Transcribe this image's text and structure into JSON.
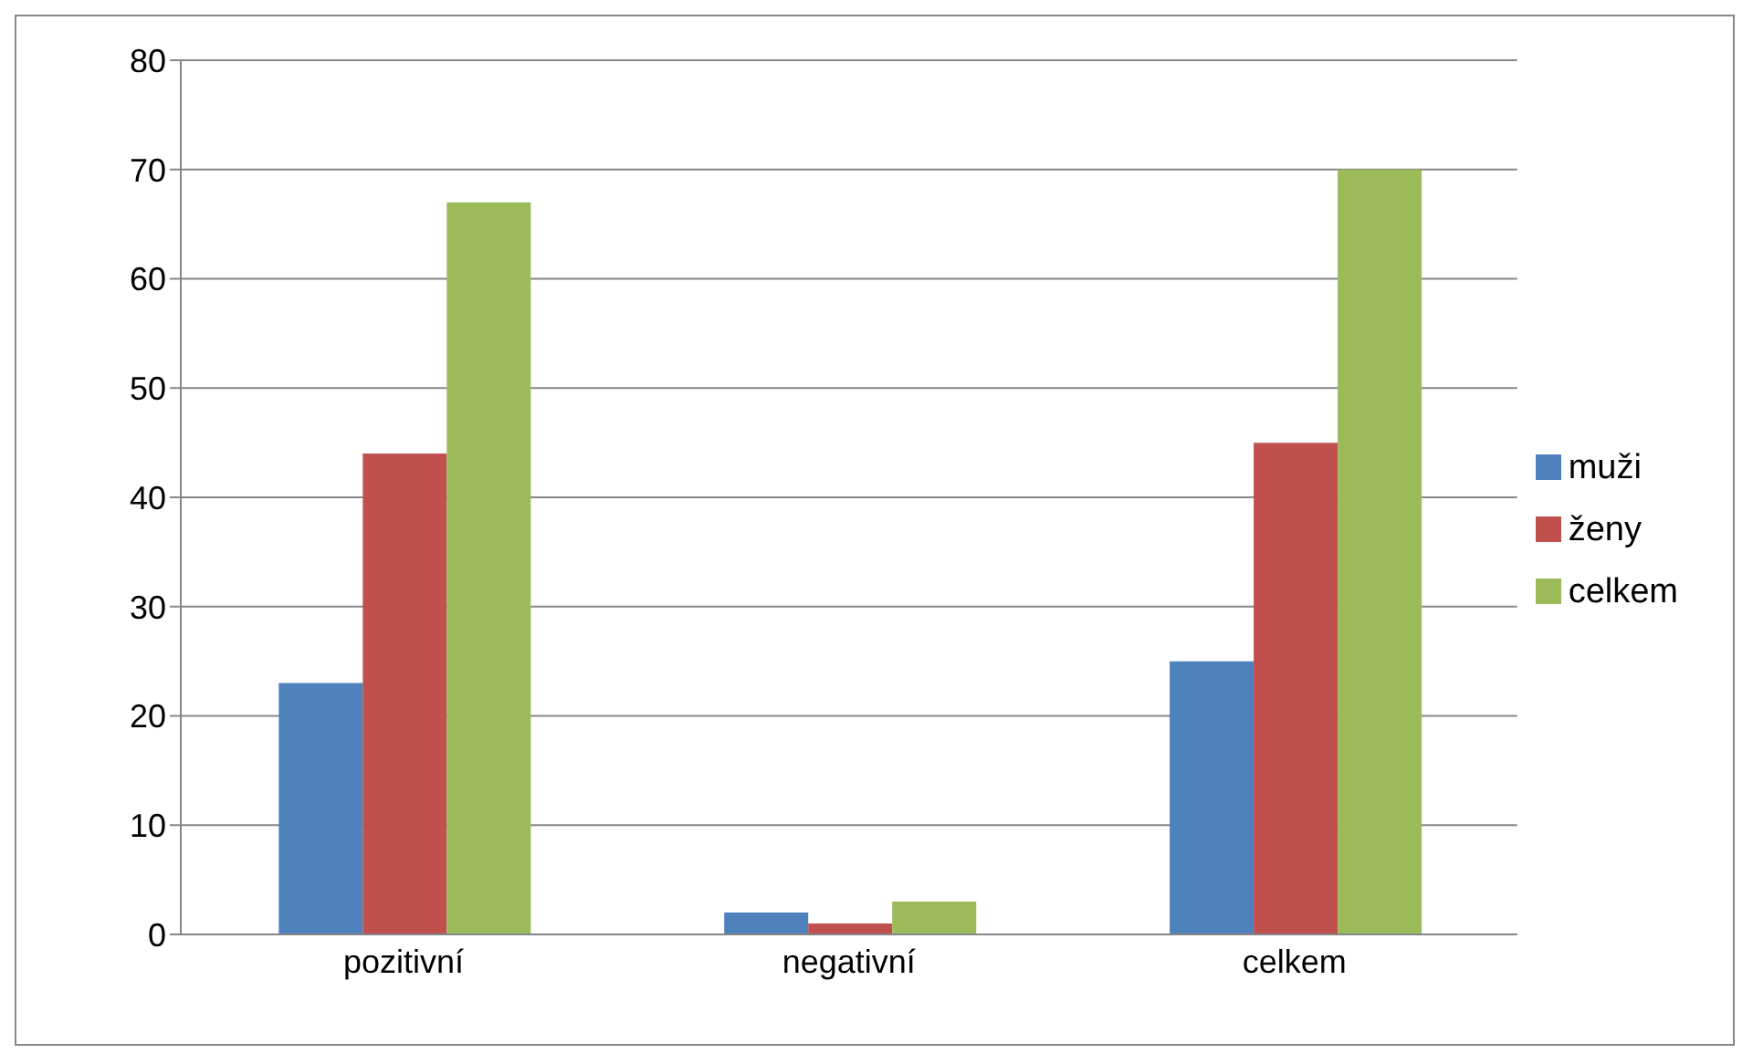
{
  "chart_data": {
    "type": "bar",
    "categories": [
      "pozitivní",
      "negativní",
      "celkem"
    ],
    "series": [
      {
        "name": "muži",
        "color": "#4f81bd",
        "values": [
          23,
          2,
          25
        ]
      },
      {
        "name": "ženy",
        "color": "#c0504d",
        "values": [
          44,
          1,
          45
        ]
      },
      {
        "name": "celkem",
        "color": "#9bbb59",
        "values": [
          67,
          3,
          70
        ]
      }
    ],
    "ylim": [
      0,
      80
    ],
    "yticks": [
      0,
      10,
      20,
      30,
      40,
      50,
      60,
      70,
      80
    ],
    "grid": "y",
    "legend": "right"
  }
}
